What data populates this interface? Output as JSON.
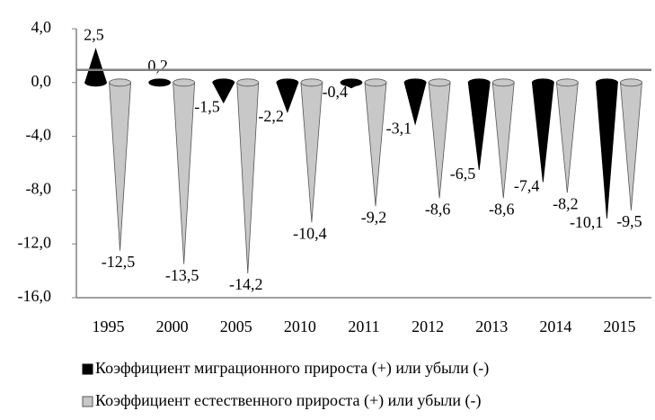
{
  "chart_data": {
    "type": "cone",
    "categories": [
      "1995",
      "2000",
      "2005",
      "2010",
      "2011",
      "2012",
      "2013",
      "2014",
      "2015"
    ],
    "series": [
      {
        "name": "Коэффициент миграционного прироста (+) или убыли (-)",
        "color": "#000000",
        "values": [
          2.5,
          0.2,
          -1.5,
          -2.2,
          -0.4,
          -3.1,
          -6.5,
          -7.4,
          -10.1
        ],
        "value_labels": [
          "2,5",
          "0,2",
          "-1,5",
          "-2,2",
          "-0,4",
          "-3,1",
          "-6,5",
          "-7,4",
          "-10,1"
        ]
      },
      {
        "name": "Коэффициент естественного прироста (+) или убыли (-)",
        "color": "#c8c8c8",
        "values": [
          -12.5,
          -13.5,
          -14.2,
          -10.4,
          -9.2,
          -8.6,
          -8.6,
          -8.2,
          -9.5
        ],
        "value_labels": [
          "-12,5",
          "-13,5",
          "-14,2",
          "-10,4",
          "-9,2",
          "-8,6",
          "-8,6",
          "-8,2",
          "-9,5"
        ]
      }
    ],
    "ylim": [
      -16,
      4
    ],
    "yticks": [
      {
        "value": 4,
        "label": "4,0"
      },
      {
        "value": 0,
        "label": "0,0"
      },
      {
        "value": -4,
        "label": "-4,0"
      },
      {
        "value": -8,
        "label": "-8,0"
      },
      {
        "value": -12,
        "label": "-12,0"
      },
      {
        "value": -16,
        "label": "-16,0"
      }
    ]
  }
}
